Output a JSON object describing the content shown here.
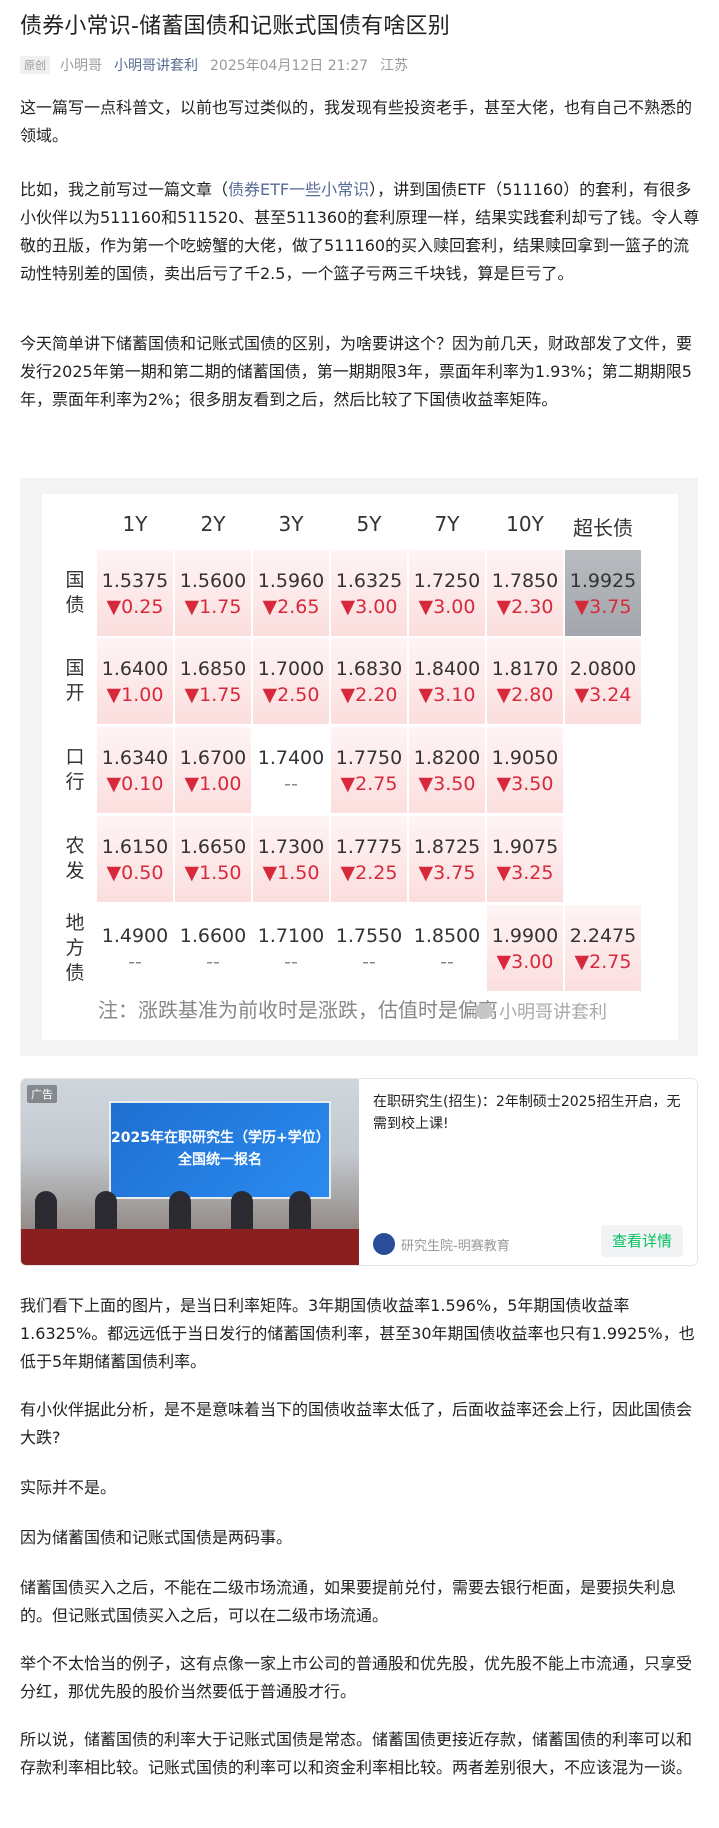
{
  "article": {
    "title": "债券小常识-储蓄国债和记账式国债有啥区别",
    "badge": "原创",
    "author": "小明哥",
    "account": "小明哥讲套利",
    "date": "2025年04月12日 21:27",
    "location": "江苏"
  },
  "paragraphs": {
    "p1": "这一篇写一点科普文，以前也写过类似的，我发现有些投资老手，甚至大佬，也有自己不熟悉的领域。",
    "p2_pre": "比如，我之前写过一篇文章（",
    "p2_link": "债券ETF一些小常识",
    "p2_post": "），讲到国债ETF（511160）的套利，有很多小伙伴以为511160和511520、甚至511360的套利原理一样，结果实践套利却亏了钱。令人尊敬的丑版，作为第一个吃螃蟹的大佬，做了511160的买入赎回套利，结果赎回拿到一篮子的流动性特别差的国债，卖出后亏了千2.5，一个篮子亏两三千块钱，算是巨亏了。",
    "p3": "今天简单讲下储蓄国债和记账式国债的区别，为啥要讲这个？因为前几天，财政部发了文件，要发行2025年第一期和第二期的储蓄国债，第一期期限3年，票面年利率为1.93%；第二期期限5年，票面年利率为2%；很多朋友看到之后，然后比较了下国债收益率矩阵。",
    "p4": "我们看下上面的图片，是当日利率矩阵。3年期国债收益率1.596%，5年期国债收益率1.6325%。都远远低于当日发行的储蓄国债利率，甚至30年期国债收益率也只有1.9925%，也低于5年期储蓄国债利率。",
    "p5": "有小伙伴据此分析，是不是意味着当下的国债收益率太低了，后面收益率还会上行，因此国债会大跌?",
    "p6": "实际并不是。",
    "p7": "因为储蓄国债和记账式国债是两码事。",
    "p8": "储蓄国债买入之后，不能在二级市场流通，如果要提前兑付，需要去银行柜面，是要损失利息的。但记账式国债买入之后，可以在二级市场流通。",
    "p9": "举个不太恰当的例子，这有点像一家上市公司的普通股和优先股，优先股不能上市流通，只享受分红，那优先股的股价当然要低于普通股才行。",
    "p10": "所以说，储蓄国债的利率大于记账式国债是常态。储蓄国债更接近存款，储蓄国债的利率可以和存款利率相比较。记账式国债的利率可以和资金利率相比较。两者差别很大，不应该混为一谈。"
  },
  "matrix": {
    "headers": [
      "1Y",
      "2Y",
      "3Y",
      "5Y",
      "7Y",
      "10Y",
      "超长债"
    ],
    "rows": [
      {
        "label": "国债",
        "values": [
          "1.5375",
          "1.5600",
          "1.5960",
          "1.6325",
          "1.7250",
          "1.7850",
          "1.9925"
        ],
        "changes": [
          "▼0.25",
          "▼1.75",
          "▼2.65",
          "▼3.00",
          "▼3.00",
          "▼2.30",
          "▼3.75"
        ]
      },
      {
        "label": "国开",
        "values": [
          "1.6400",
          "1.6850",
          "1.7000",
          "1.6830",
          "1.8400",
          "1.8170",
          "2.0800"
        ],
        "changes": [
          "▼1.00",
          "▼1.75",
          "▼2.50",
          "▼2.20",
          "▼3.10",
          "▼2.80",
          "▼3.24"
        ]
      },
      {
        "label": "口行",
        "values": [
          "1.6340",
          "1.6700",
          "1.7400",
          "1.7750",
          "1.8200",
          "1.9050",
          ""
        ],
        "changes": [
          "▼0.10",
          "▼1.00",
          "--",
          "▼2.75",
          "▼3.50",
          "▼3.50",
          ""
        ]
      },
      {
        "label": "农发",
        "values": [
          "1.6150",
          "1.6650",
          "1.7300",
          "1.7775",
          "1.8725",
          "1.9075",
          ""
        ],
        "changes": [
          "▼0.50",
          "▼1.50",
          "▼1.50",
          "▼2.25",
          "▼3.75",
          "▼3.25",
          ""
        ]
      },
      {
        "label": "地方债",
        "values": [
          "1.4900",
          "1.6600",
          "1.7100",
          "1.7550",
          "1.8500",
          "1.9900",
          "2.2475"
        ],
        "changes": [
          "--",
          "--",
          "--",
          "--",
          "--",
          "▼3.00",
          "▼2.75"
        ]
      }
    ],
    "note": "注：涨跌基准为前收时是涨跌，估值时是偏离",
    "watermark": "小明哥讲套利",
    "down_color": "#d8293c"
  },
  "ad": {
    "tag": "广告",
    "screen_line1": "2025年在职研究生（学历+学位）",
    "screen_line2": "全国统一报名",
    "title": "在职研究生(招生)：2年制硕士2025招生开启，无需到校上课!",
    "brand": "研究生院-明赛教育",
    "cta": "查看详情",
    "cta_color": "#07c160"
  }
}
